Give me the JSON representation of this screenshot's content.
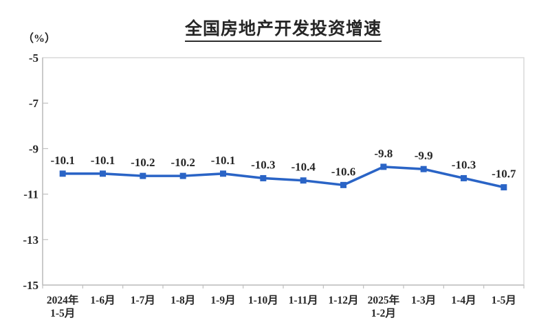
{
  "page": {
    "background": "#ffffff"
  },
  "chart_data": {
    "type": "line",
    "title": "全国房地产开发投资增速",
    "unit_label": "（%）",
    "xlabel": "",
    "ylabel": "",
    "ylim": [
      -15,
      -5
    ],
    "yticks": [
      -5,
      -7,
      -9,
      -11,
      -13,
      -15
    ],
    "grid": "off",
    "legend": "none",
    "categories": [
      "2024年\n1-5月",
      "1-6月",
      "1-7月",
      "1-8月",
      "1-9月",
      "1-10月",
      "1-11月",
      "1-12月",
      "2025年\n1-2月",
      "1-3月",
      "1-4月",
      "1-5月"
    ],
    "values": [
      -10.1,
      -10.1,
      -10.2,
      -10.2,
      -10.1,
      -10.3,
      -10.4,
      -10.6,
      -9.8,
      -9.9,
      -10.3,
      -10.7
    ],
    "point_labels": [
      "-10.1",
      "-10.1",
      "-10.2",
      "-10.2",
      "-10.1",
      "-10.3",
      "-10.4",
      "-10.6",
      "-9.8",
      "-9.9",
      "-10.3",
      "-10.7"
    ],
    "colors": {
      "line": "#2A64C6",
      "marker": "#2A64C6",
      "text": "#262626",
      "axis": "#BFBFBF",
      "border": "#D9D9D9"
    }
  }
}
